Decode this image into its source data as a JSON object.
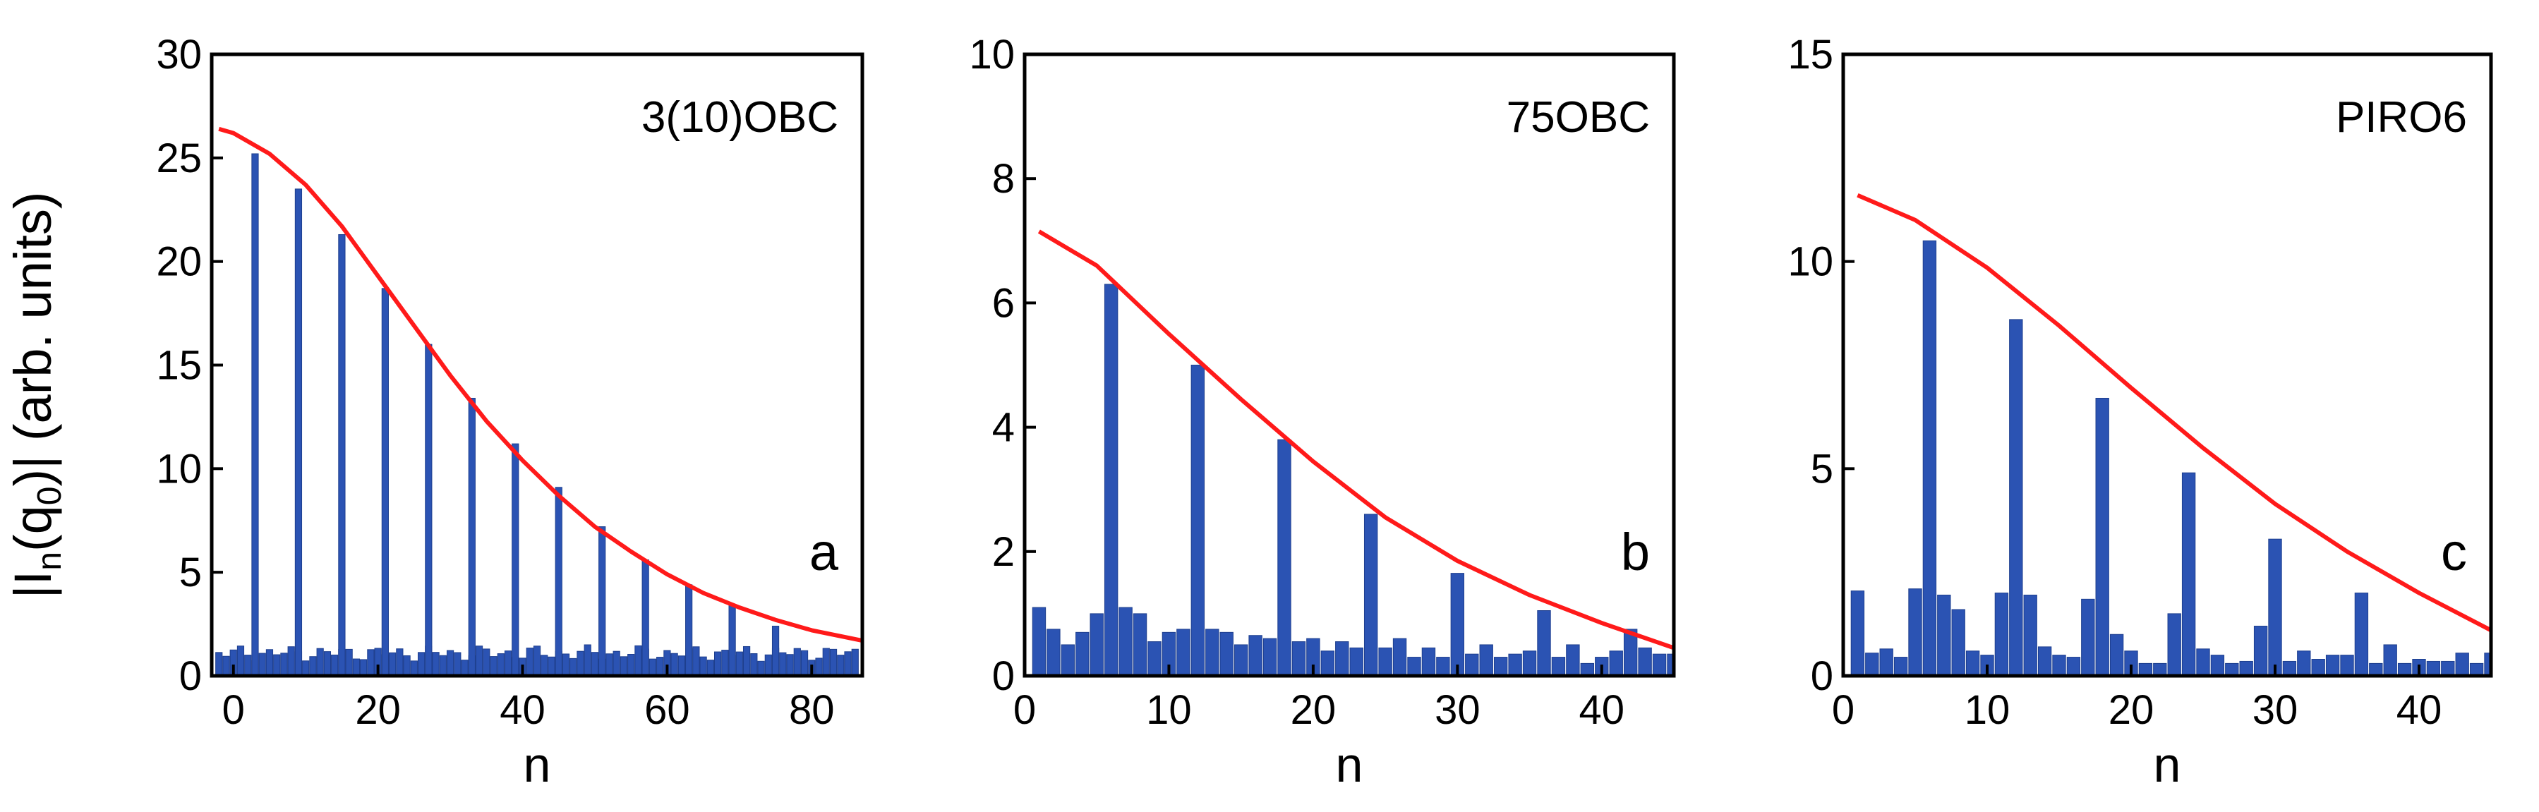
{
  "figure": {
    "ylabel_main": "|I",
    "ylabel_sub_n": "n",
    "ylabel_paren": "(q",
    "ylabel_sub_0": "0",
    "ylabel_tail": ")| (arb. units)"
  },
  "colors": {
    "bars": "#2b53b3",
    "bars_edge": "#1e3f8e",
    "curve": "#ff1a1a",
    "axes": "#000000"
  },
  "chart_data": [
    {
      "type": "bar",
      "panel_label": "a",
      "title": "3(10)OBC",
      "xlabel": "n",
      "ylabel": "|In(q0)| (arb. units)",
      "xlim": [
        -3,
        87
      ],
      "ylim": [
        0,
        30
      ],
      "xticks": [
        0,
        20,
        40,
        60,
        80
      ],
      "yticks": [
        0,
        5,
        10,
        15,
        20,
        25,
        30
      ],
      "bar_width": 0.9,
      "background_level": 1.1,
      "background_n_range": [
        -2,
        86
      ],
      "peaks": [
        {
          "n": 3,
          "value": 25.2
        },
        {
          "n": 9,
          "value": 23.5
        },
        {
          "n": 15,
          "value": 21.3
        },
        {
          "n": 21,
          "value": 18.7
        },
        {
          "n": 27,
          "value": 16.0
        },
        {
          "n": 33,
          "value": 13.4
        },
        {
          "n": 39,
          "value": 11.2
        },
        {
          "n": 45,
          "value": 9.1
        },
        {
          "n": 51,
          "value": 7.2
        },
        {
          "n": 57,
          "value": 5.6
        },
        {
          "n": 63,
          "value": 4.4
        },
        {
          "n": 69,
          "value": 3.4
        },
        {
          "n": 75,
          "value": 2.4
        }
      ],
      "envelope": {
        "name": "",
        "x": [
          -2,
          0,
          5,
          10,
          15,
          20,
          25,
          30,
          35,
          40,
          45,
          50,
          55,
          60,
          65,
          70,
          75,
          80,
          87
        ],
        "y": [
          26.4,
          26.2,
          25.2,
          23.7,
          21.7,
          19.3,
          16.9,
          14.5,
          12.3,
          10.4,
          8.7,
          7.2,
          6.0,
          4.9,
          4.0,
          3.3,
          2.7,
          2.2,
          1.7
        ]
      }
    },
    {
      "type": "bar",
      "panel_label": "b",
      "title": "75OBC",
      "xlabel": "n",
      "ylabel": "",
      "xlim": [
        0,
        45
      ],
      "ylim": [
        0,
        10
      ],
      "xticks": [
        0,
        10,
        20,
        30,
        40
      ],
      "yticks": [
        0,
        2,
        4,
        6,
        8,
        10
      ],
      "bar_width": 0.9,
      "categories": [
        1,
        2,
        3,
        4,
        5,
        6,
        7,
        8,
        9,
        10,
        11,
        12,
        13,
        14,
        15,
        16,
        17,
        18,
        19,
        20,
        21,
        22,
        23,
        24,
        25,
        26,
        27,
        28,
        29,
        30,
        31,
        32,
        33,
        34,
        35,
        36,
        37,
        38,
        39,
        40,
        41,
        42,
        43,
        44,
        45
      ],
      "values": [
        1.1,
        0.75,
        0.5,
        0.7,
        1.0,
        6.3,
        1.1,
        1.0,
        0.55,
        0.7,
        0.75,
        5.0,
        0.75,
        0.7,
        0.5,
        0.65,
        0.6,
        3.8,
        0.55,
        0.6,
        0.4,
        0.55,
        0.45,
        2.6,
        0.45,
        0.6,
        0.3,
        0.45,
        0.3,
        1.65,
        0.35,
        0.5,
        0.3,
        0.35,
        0.4,
        1.05,
        0.3,
        0.5,
        0.2,
        0.3,
        0.4,
        0.75,
        0.45,
        0.35,
        0.35
      ],
      "envelope": {
        "name": "",
        "x": [
          1,
          5,
          10,
          15,
          20,
          25,
          30,
          35,
          40,
          45
        ],
        "y": [
          7.15,
          6.6,
          5.5,
          4.45,
          3.45,
          2.55,
          1.85,
          1.3,
          0.85,
          0.45
        ]
      }
    },
    {
      "type": "bar",
      "panel_label": "c",
      "title": "PIRO6",
      "xlabel": "n",
      "ylabel": "",
      "xlim": [
        0,
        45
      ],
      "ylim": [
        0,
        15
      ],
      "xticks": [
        0,
        10,
        20,
        30,
        40
      ],
      "yticks": [
        0,
        5,
        10,
        15
      ],
      "bar_width": 0.9,
      "categories": [
        1,
        2,
        3,
        4,
        5,
        6,
        7,
        8,
        9,
        10,
        11,
        12,
        13,
        14,
        15,
        16,
        17,
        18,
        19,
        20,
        21,
        22,
        23,
        24,
        25,
        26,
        27,
        28,
        29,
        30,
        31,
        32,
        33,
        34,
        35,
        36,
        37,
        38,
        39,
        40,
        41,
        42,
        43,
        44,
        45
      ],
      "values": [
        2.05,
        0.55,
        0.65,
        0.45,
        2.1,
        10.5,
        1.95,
        1.6,
        0.6,
        0.5,
        2.0,
        8.6,
        1.95,
        0.7,
        0.5,
        0.45,
        1.85,
        6.7,
        1.0,
        0.6,
        0.3,
        0.3,
        1.5,
        4.9,
        0.65,
        0.5,
        0.3,
        0.35,
        1.2,
        3.3,
        0.35,
        0.6,
        0.4,
        0.5,
        0.5,
        2.0,
        0.3,
        0.75,
        0.3,
        0.4,
        0.35,
        0.35,
        0.55,
        0.3,
        0.55
      ],
      "envelope": {
        "name": "",
        "x": [
          1,
          5,
          10,
          15,
          20,
          25,
          30,
          35,
          40,
          45
        ],
        "y": [
          11.6,
          11.0,
          9.85,
          8.45,
          6.95,
          5.5,
          4.15,
          3.0,
          2.0,
          1.1
        ]
      }
    }
  ]
}
